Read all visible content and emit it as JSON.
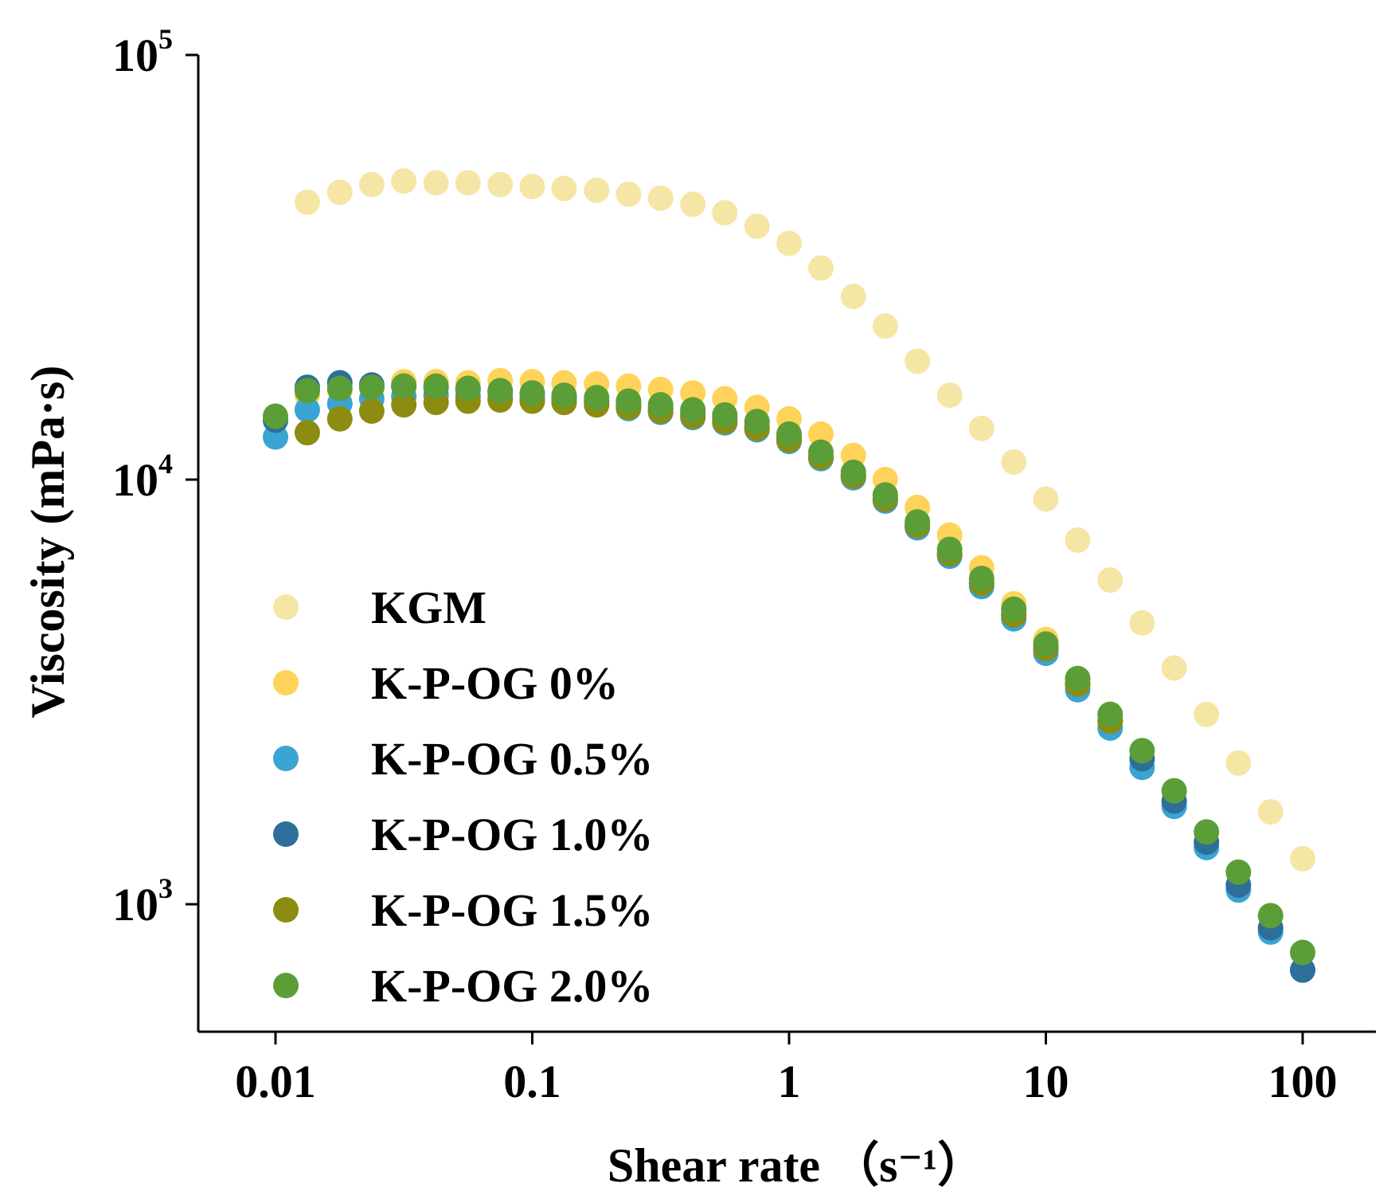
{
  "chart_data": {
    "type": "scatter",
    "xscale": "log",
    "yscale": "log",
    "xlim": [
      0.0055,
      200
    ],
    "ylim": [
      600,
      100000
    ],
    "xlabel": "Shear rate (s⁻¹)",
    "xlabel_main": "Shear rate",
    "xlabel_unit": "（s⁻¹）",
    "ylabel": "Viscosity (mPa·s)",
    "x_ticks": [
      {
        "value": 0.01,
        "label": "0.01"
      },
      {
        "value": 0.1,
        "label": "0.1"
      },
      {
        "value": 1,
        "label": "1"
      },
      {
        "value": 10,
        "label": "10"
      },
      {
        "value": 100,
        "label": "100"
      }
    ],
    "y_ticks": [
      {
        "value": 1000,
        "base": "10",
        "exp": "3"
      },
      {
        "value": 10000,
        "base": "10",
        "exp": "4"
      },
      {
        "value": 100000,
        "base": "10",
        "exp": "5"
      }
    ],
    "legend_position": "bottom-left",
    "grid": false,
    "x": [
      0.01,
      0.0133,
      0.0178,
      0.0237,
      0.0316,
      0.0422,
      0.0562,
      0.075,
      0.1,
      0.133,
      0.178,
      0.237,
      0.316,
      0.422,
      0.562,
      0.75,
      1,
      1.33,
      1.78,
      2.37,
      3.16,
      4.22,
      5.62,
      7.5,
      10,
      13.3,
      17.8,
      23.7,
      31.6,
      42.2,
      56.2,
      75,
      100
    ],
    "series": [
      {
        "name": "KGM",
        "color": "#f5e6a6",
        "values": [
          null,
          45000,
          47500,
          49500,
          50500,
          50000,
          50000,
          49500,
          49000,
          48500,
          48000,
          47000,
          46000,
          44500,
          42500,
          39500,
          36000,
          31500,
          27000,
          23000,
          19000,
          15800,
          13200,
          11000,
          9000,
          7200,
          5800,
          4600,
          3600,
          2800,
          2150,
          1650,
          1280
        ]
      },
      {
        "name": "K-P-OG 0%",
        "color": "#ffd35a",
        "values": [
          null,
          15800,
          16200,
          16700,
          17000,
          17000,
          16900,
          17100,
          17000,
          16900,
          16800,
          16600,
          16300,
          16000,
          15500,
          14800,
          13900,
          12800,
          11400,
          10000,
          8600,
          7400,
          6200,
          5100,
          4200,
          3400,
          2700,
          null,
          null,
          null,
          null,
          null,
          null
        ]
      },
      {
        "name": "K-P-OG 0.5%",
        "color": "#3aa4d2",
        "values": [
          12600,
          14600,
          15100,
          15500,
          15700,
          15800,
          15700,
          15600,
          15500,
          15200,
          15000,
          14700,
          14400,
          14000,
          13600,
          13100,
          12300,
          11200,
          10100,
          8900,
          7700,
          6600,
          5600,
          4700,
          3900,
          3200,
          2600,
          2100,
          1700,
          1360,
          1080,
          860,
          700
        ]
      },
      {
        "name": "K-P-OG 1.0%",
        "color": "#2e6f9a",
        "values": [
          13800,
          16500,
          16900,
          16700,
          16600,
          16500,
          16300,
          16100,
          15900,
          15600,
          15300,
          15000,
          14700,
          14300,
          13900,
          13300,
          12500,
          11300,
          10200,
          9000,
          7800,
          6700,
          5700,
          4800,
          4000,
          3300,
          2700,
          2200,
          1750,
          1400,
          1110,
          880,
          700
        ]
      },
      {
        "name": "K-P-OG 1.5%",
        "color": "#8c8c10",
        "values": [
          null,
          12900,
          13900,
          14500,
          15000,
          15200,
          15300,
          15400,
          15300,
          15200,
          15000,
          14800,
          14500,
          14100,
          13700,
          13200,
          12400,
          11300,
          10200,
          9000,
          7800,
          6700,
          5700,
          4800,
          4000,
          3300,
          2700,
          null,
          null,
          null,
          null,
          null,
          null
        ]
      },
      {
        "name": "K-P-OG 2.0%",
        "color": "#5b9e38",
        "values": [
          14100,
          16200,
          16400,
          16500,
          16600,
          16600,
          16400,
          16200,
          16000,
          15800,
          15600,
          15300,
          15000,
          14600,
          14200,
          13700,
          12800,
          11600,
          10400,
          9200,
          7950,
          6850,
          5850,
          4950,
          4100,
          3400,
          2800,
          2300,
          1850,
          1480,
          1190,
          940,
          770
        ]
      }
    ]
  }
}
